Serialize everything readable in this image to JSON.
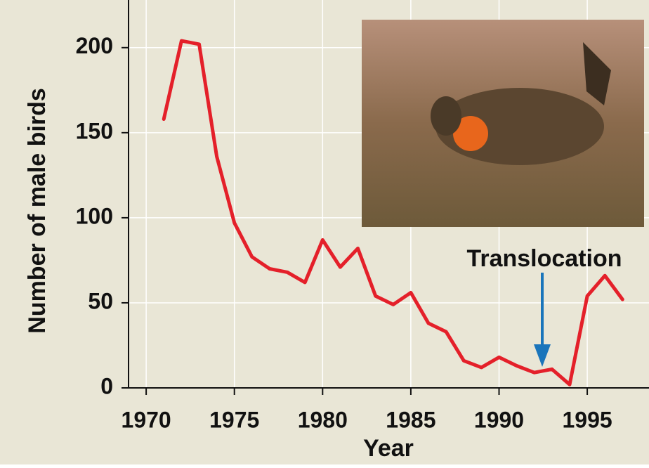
{
  "chart_data": {
    "type": "line",
    "x_label": "Year",
    "y_label": "Number of male birds",
    "annotation": "Translocation",
    "x": [
      1971,
      1972,
      1973,
      1974,
      1975,
      1976,
      1977,
      1978,
      1979,
      1980,
      1981,
      1982,
      1983,
      1984,
      1985,
      1986,
      1987,
      1988,
      1989,
      1990,
      1991,
      1992,
      1993,
      1994,
      1995,
      1996,
      1997
    ],
    "series": [
      {
        "color": "#e4202a",
        "values": [
          158,
          204,
          202,
          136,
          97,
          77,
          70,
          68,
          62,
          87,
          71,
          82,
          54,
          49,
          56,
          38,
          33,
          16,
          12,
          18,
          13,
          9,
          11,
          2,
          54,
          66,
          52
        ]
      }
    ],
    "xlim": [
      1969,
      1998.5
    ],
    "ylim": [
      0,
      228
    ],
    "xticks": [
      1970,
      1975,
      1980,
      1985,
      1990,
      1995
    ],
    "yticks": [
      0,
      50,
      100,
      150,
      200
    ],
    "grid": true
  }
}
